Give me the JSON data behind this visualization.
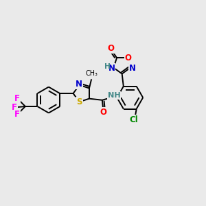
{
  "bg_color": "#eaeaea",
  "bond_color": "#000000",
  "atom_colors": {
    "N": "#0000cc",
    "O": "#ff0000",
    "S": "#ccaa00",
    "F": "#ff00ff",
    "Cl": "#008800",
    "H_label": "#448888",
    "C": "#000000"
  },
  "font_size": 8.5,
  "lw": 1.4,
  "figsize": [
    3.0,
    3.0
  ],
  "dpi": 100,
  "xlim": [
    0,
    10
  ],
  "ylim": [
    0,
    10
  ]
}
